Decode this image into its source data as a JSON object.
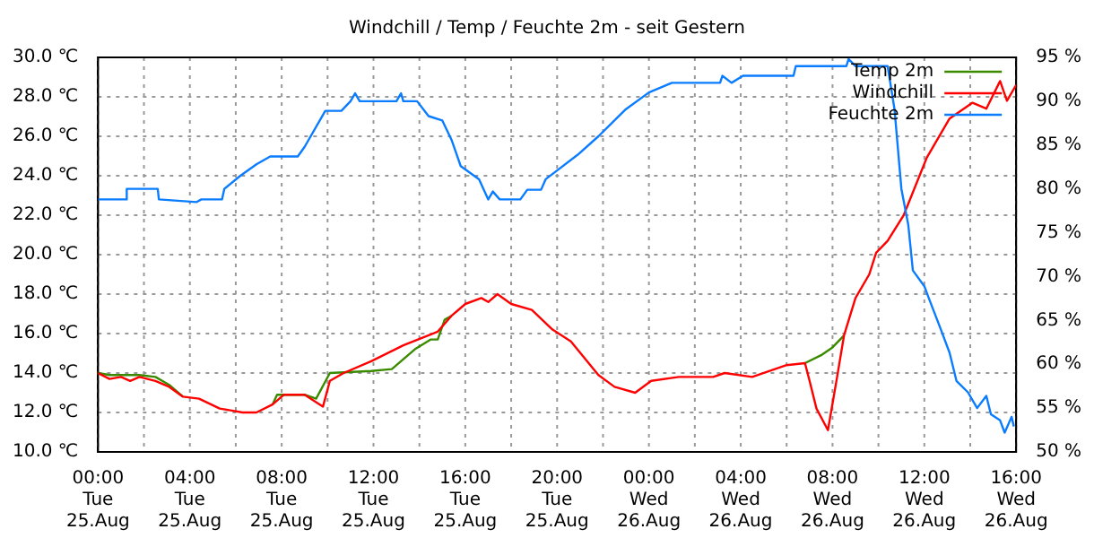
{
  "chart_data": {
    "type": "line",
    "title": "Windchill / Temp / Feuchte 2m - seit Gestern",
    "legend": "top right",
    "grid": true,
    "marker": "none",
    "line_style": "solid",
    "xlim": [
      "--08-25T00:00",
      "--08-26T16:00"
    ],
    "xticks": [
      {
        "value": "--08-25T00:00",
        "label": "00:00\nTue\n25.Aug"
      },
      {
        "value": "--08-25T02:00",
        "label": null
      },
      {
        "value": "--08-25T04:00",
        "label": "04:00\nTue\n25.Aug"
      },
      {
        "value": "--08-25T06:00",
        "label": null
      },
      {
        "value": "--08-25T08:00",
        "label": "08:00\nTue\n25.Aug"
      },
      {
        "value": "--08-25T10:00",
        "label": null
      },
      {
        "value": "--08-25T12:00",
        "label": "12:00\nTue\n25.Aug"
      },
      {
        "value": "--08-25T14:00",
        "label": null
      },
      {
        "value": "--08-25T16:00",
        "label": "16:00\nTue\n25.Aug"
      },
      {
        "value": "--08-25T18:00",
        "label": null
      },
      {
        "value": "--08-25T20:00",
        "label": "20:00\nTue\n25.Aug"
      },
      {
        "value": "--08-25T22:00",
        "label": null
      },
      {
        "value": "--08-26T00:00",
        "label": "00:00\nWed\n26.Aug"
      },
      {
        "value": "--08-26T02:00",
        "label": null
      },
      {
        "value": "--08-26T04:00",
        "label": "04:00\nWed\n26.Aug"
      },
      {
        "value": "--08-26T06:00",
        "label": null
      },
      {
        "value": "--08-26T08:00",
        "label": "08:00\nWed\n26.Aug"
      },
      {
        "value": "--08-26T10:00",
        "label": null
      },
      {
        "value": "--08-26T12:00",
        "label": "12:00\nWed\n26.Aug"
      },
      {
        "value": "--08-26T14:00",
        "label": null
      },
      {
        "value": "--08-26T16:00",
        "label": "16:00\nWed\n26.Aug"
      }
    ],
    "ylim": [
      10,
      30
    ],
    "yticks": [
      {
        "value": 10,
        "label": "10.0 ℃"
      },
      {
        "value": 12,
        "label": "12.0 ℃"
      },
      {
        "value": 14,
        "label": "14.0 ℃"
      },
      {
        "value": 16,
        "label": "16.0 ℃"
      },
      {
        "value": 18,
        "label": "18.0 ℃"
      },
      {
        "value": 20,
        "label": "20.0 ℃"
      },
      {
        "value": 22,
        "label": "22.0 ℃"
      },
      {
        "value": 24,
        "label": "24.0 ℃"
      },
      {
        "value": 26,
        "label": "26.0 ℃"
      },
      {
        "value": 28,
        "label": "28.0 ℃"
      },
      {
        "value": 30,
        "label": "30.0 ℃"
      }
    ],
    "y2lim": [
      50,
      95
    ],
    "y2ticks": [
      {
        "value": 50,
        "label": "50 %"
      },
      {
        "value": 55,
        "label": "55 %"
      },
      {
        "value": 60,
        "label": "60 %"
      },
      {
        "value": 65,
        "label": "65 %"
      },
      {
        "value": 70,
        "label": "70 %"
      },
      {
        "value": 75,
        "label": "75 %"
      },
      {
        "value": 80,
        "label": "80 %"
      },
      {
        "value": 85,
        "label": "85 %"
      },
      {
        "value": 90,
        "label": "90 %"
      },
      {
        "value": 95,
        "label": "95 %"
      }
    ],
    "series": [
      {
        "name": "Temp 2m",
        "color": "#3a8a00",
        "x": [
          "--08-25T00:00",
          "--08-25T00:30",
          "--08-25T01:24",
          "--08-25T01:48",
          "--08-25T02:30",
          "--08-25T03:06",
          "--08-25T03:42",
          "--08-25T04:24",
          "--08-25T05:18",
          "--08-25T06:18",
          "--08-25T06:54",
          "--08-25T07:36",
          "--08-25T07:48",
          "--08-25T09:00",
          "--08-25T09:30",
          "--08-25T10:06",
          "--08-25T11:54",
          "--08-25T12:48",
          "--08-25T13:48",
          "--08-25T14:30",
          "--08-25T14:48",
          "--08-25T15:06",
          "--08-25T15:24",
          "--08-25T16:00",
          "--08-25T16:42",
          "--08-25T17:00",
          "--08-25T17:24",
          "--08-25T18:00",
          "--08-25T18:54",
          "--08-25T19:48",
          "--08-25T20:36",
          "--08-25T21:48",
          "--08-25T22:30",
          "--08-25T23:24",
          "--08-26T00:06",
          "--08-26T01:18",
          "--08-26T02:48",
          "--08-26T03:18",
          "--08-26T04:30",
          "--08-26T06:00",
          "--08-26T06:48",
          "--08-26T07:30",
          "--08-26T08:00",
          "--08-26T08:30"
        ],
        "values": [
          14.0,
          13.9,
          13.9,
          13.9,
          13.8,
          13.4,
          12.8,
          null,
          null,
          null,
          null,
          12.4,
          12.9,
          12.9,
          12.7,
          14.0,
          14.1,
          14.2,
          15.2,
          15.7,
          15.7,
          16.7,
          16.9,
          null,
          null,
          null,
          null,
          null,
          null,
          null,
          null,
          null,
          null,
          null,
          null,
          null,
          null,
          null,
          null,
          null,
          14.5,
          14.9,
          15.3,
          15.9
        ]
      },
      {
        "name": "Windchill",
        "color": "#ff0000",
        "x": [
          "--08-25T00:00",
          "--08-25T00:30",
          "--08-25T01:00",
          "--08-25T01:24",
          "--08-25T01:48",
          "--08-25T02:30",
          "--08-25T03:06",
          "--08-25T03:42",
          "--08-25T04:24",
          "--08-25T05:18",
          "--08-25T06:18",
          "--08-25T06:54",
          "--08-25T07:36",
          "--08-25T08:06",
          "--08-25T09:00",
          "--08-25T09:48",
          "--08-25T10:06",
          "--08-25T10:42",
          "--08-25T11:54",
          "--08-25T13:18",
          "--08-25T14:48",
          "--08-25T15:24",
          "--08-25T16:00",
          "--08-25T16:42",
          "--08-25T17:00",
          "--08-25T17:24",
          "--08-25T18:00",
          "--08-25T18:54",
          "--08-25T19:48",
          "--08-25T20:36",
          "--08-25T21:48",
          "--08-25T22:30",
          "--08-25T23:24",
          "--08-26T00:06",
          "--08-26T01:18",
          "--08-26T02:48",
          "--08-26T03:18",
          "--08-26T04:30",
          "--08-26T06:00",
          "--08-26T06:48",
          "--08-26T07:00",
          "--08-26T07:18",
          "--08-26T07:48",
          "--08-26T08:12",
          "--08-26T08:30",
          "--08-26T09:00",
          "--08-26T09:36",
          "--08-26T09:54",
          "--08-26T10:24",
          "--08-26T11:06",
          "--08-26T12:06",
          "--08-26T13:06",
          "--08-26T14:06",
          "--08-26T14:42",
          "--08-26T15:18",
          "--08-26T15:36",
          "--08-26T16:00"
        ],
        "values": [
          14.0,
          13.7,
          13.8,
          13.6,
          13.8,
          13.6,
          13.3,
          12.8,
          12.7,
          12.2,
          12.0,
          12.0,
          12.4,
          12.9,
          12.9,
          12.3,
          13.6,
          14.0,
          14.6,
          15.4,
          16.1,
          16.9,
          17.5,
          17.8,
          17.6,
          18.0,
          17.5,
          17.2,
          16.2,
          15.6,
          13.9,
          13.3,
          13.0,
          13.6,
          13.8,
          13.8,
          14.0,
          13.8,
          14.4,
          14.5,
          13.6,
          12.2,
          11.1,
          13.8,
          15.9,
          17.8,
          19.0,
          20.1,
          20.7,
          22.0,
          24.9,
          26.9,
          27.7,
          27.4,
          28.8,
          27.8,
          28.6
        ]
      },
      {
        "name": "Feuchte 2m",
        "color": "#0a7cff",
        "axis": "y2",
        "x": [
          "--08-25T00:00",
          "--08-25T01:12",
          "--08-25T01:15",
          "--08-25T02:36",
          "--08-25T02:39",
          "--08-25T04:18",
          "--08-25T04:30",
          "--08-25T05:24",
          "--08-25T05:30",
          "--08-25T06:12",
          "--08-25T06:54",
          "--08-25T07:30",
          "--08-25T08:42",
          "--08-25T09:00",
          "--08-25T09:54",
          "--08-25T10:36",
          "--08-25T11:00",
          "--08-25T11:12",
          "--08-25T11:24",
          "--08-25T13:00",
          "--08-25T13:12",
          "--08-25T13:18",
          "--08-25T13:54",
          "--08-25T14:24",
          "--08-25T15:00",
          "--08-25T15:24",
          "--08-25T15:48",
          "--08-25T16:36",
          "--08-25T17:00",
          "--08-25T17:12",
          "--08-25T17:30",
          "--08-25T18:24",
          "--08-25T18:42",
          "--08-25T19:18",
          "--08-25T19:30",
          "--08-25T20:00",
          "--08-25T20:54",
          "--08-25T21:48",
          "--08-25T23:00",
          "--08-26T00:00",
          "--08-26T01:00",
          "--08-26T03:06",
          "--08-26T03:12",
          "--08-26T03:36",
          "--08-26T04:06",
          "--08-26T06:18",
          "--08-26T06:24",
          "--08-26T08:36",
          "--08-26T08:42",
          "--08-26T09:00",
          "--08-26T10:24",
          "--08-26T10:42",
          "--08-26T11:00",
          "--08-26T11:18",
          "--08-26T11:30",
          "--08-26T12:00",
          "--08-26T12:12",
          "--08-26T12:42",
          "--08-26T13:06",
          "--08-26T13:24",
          "--08-26T13:54",
          "--08-26T14:18",
          "--08-26T14:42",
          "--08-26T14:54",
          "--08-26T15:18",
          "--08-26T15:30",
          "--08-26T15:48",
          "--08-26T15:54"
        ],
        "values": [
          78.8,
          78.8,
          80.0,
          80.0,
          78.8,
          78.5,
          78.8,
          78.8,
          80.0,
          81.5,
          82.8,
          83.7,
          83.7,
          84.8,
          88.9,
          88.9,
          90.0,
          90.9,
          90.0,
          90.0,
          90.9,
          90.0,
          90.0,
          88.3,
          87.8,
          85.6,
          82.6,
          81.1,
          78.8,
          79.7,
          78.8,
          78.8,
          79.9,
          79.9,
          81.1,
          82.1,
          83.9,
          86.0,
          89.1,
          91.0,
          92.1,
          92.1,
          92.9,
          92.1,
          92.9,
          92.9,
          94.0,
          94.0,
          94.8,
          94.0,
          94.0,
          89.1,
          80.0,
          75.9,
          70.7,
          68.9,
          67.5,
          64.1,
          61.3,
          58.1,
          56.8,
          55.0,
          56.4,
          54.3,
          53.6,
          52.2,
          54.0,
          52.9
        ]
      }
    ]
  }
}
